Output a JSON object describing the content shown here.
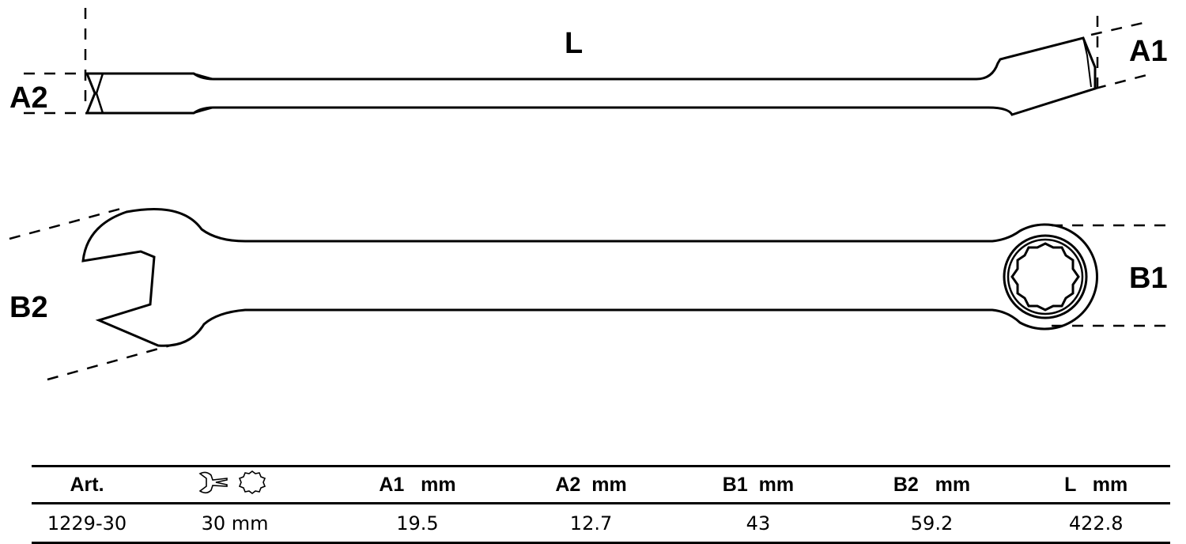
{
  "labels": {
    "L": "L",
    "A1": "A1",
    "A2": "A2",
    "B1": "B1",
    "B2": "B2"
  },
  "table": {
    "headers": [
      "Art.",
      "",
      "A1   mm",
      "A2  mm",
      "B1  mm",
      "B2   mm",
      "L   mm"
    ],
    "header_icons": [
      "open-end-wrench-icon",
      "twelve-point-ring-icon"
    ],
    "rows": [
      [
        "1229-30",
        "30 mm",
        "19.5",
        "12.7",
        "43",
        "59.2",
        "422.8"
      ]
    ]
  }
}
